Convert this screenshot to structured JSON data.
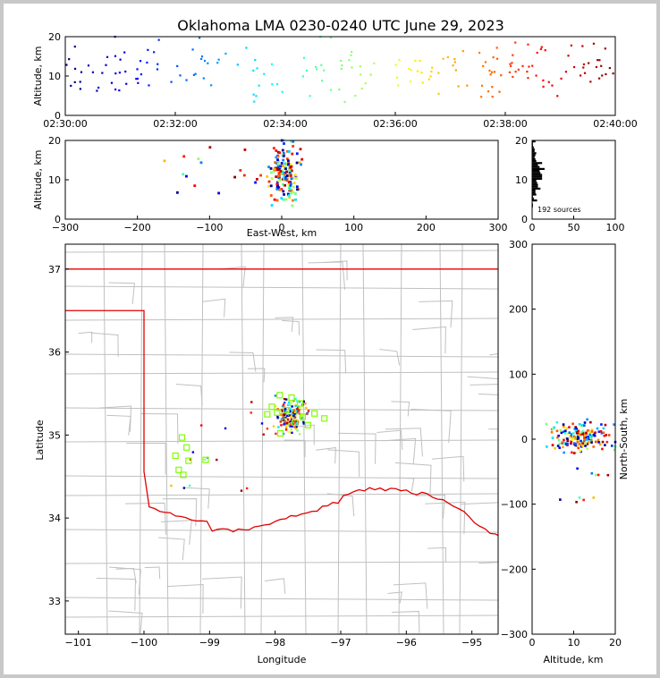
{
  "title": "Oklahoma LMA 0230-0240 UTC June 29, 2023",
  "colors": {
    "state_border": "#e00000",
    "county_lines": "#c0c0c0",
    "station_marker": "#7fff00",
    "colormap": "jet"
  },
  "chart_data": [
    {
      "id": "time-altitude",
      "type": "scatter",
      "ylabel": "Altitude, km",
      "ylim": [
        0,
        20
      ],
      "yticks": [
        "0",
        "10",
        "20"
      ],
      "xlim_seconds": [
        0,
        600
      ],
      "xtick_labels": [
        "02:30:00",
        "02:32:00",
        "02:34:00",
        "02:36:00",
        "02:38:00",
        "02:40:00"
      ],
      "points_note": "scattered sources, color = time (jet colormap)"
    },
    {
      "id": "eastwest-altitude",
      "type": "scatter",
      "xlabel": "East-West, km",
      "ylabel": "Altitude, km",
      "xlim": [
        -300,
        300
      ],
      "ylim": [
        0,
        20
      ],
      "xticks": [
        "−300",
        "−200",
        "−100",
        "0",
        "100",
        "200",
        "300"
      ],
      "yticks": [
        "0",
        "10",
        "20"
      ]
    },
    {
      "id": "altitude-histogram",
      "type": "bar",
      "annotation": "192 sources",
      "xlim": [
        0,
        100
      ],
      "ylim": [
        0,
        20
      ],
      "xticks": [
        "0",
        "50",
        "100"
      ],
      "yticks": [
        "0",
        "10",
        "20"
      ]
    },
    {
      "id": "plan-view",
      "type": "scatter",
      "xlabel": "Longitude",
      "ylabel": "Latitude",
      "xlim": [
        -101.2,
        -94.6
      ],
      "ylim": [
        32.6,
        37.3
      ],
      "xticks": [
        "−101",
        "−100",
        "−99",
        "−98",
        "−97",
        "−96",
        "−95"
      ],
      "yticks": [
        "33",
        "34",
        "35",
        "36",
        "37"
      ],
      "stations": [
        [
          -97.93,
          35.48
        ],
        [
          -97.75,
          35.45
        ],
        [
          -97.62,
          35.38
        ],
        [
          -97.83,
          35.3
        ],
        [
          -97.97,
          35.27
        ],
        [
          -98.12,
          35.25
        ],
        [
          -97.58,
          35.22
        ],
        [
          -97.4,
          35.26
        ],
        [
          -97.5,
          35.12
        ],
        [
          -97.7,
          35.15
        ],
        [
          -97.92,
          35.02
        ],
        [
          -98.05,
          35.34
        ],
        [
          -97.25,
          35.2
        ],
        [
          -99.42,
          34.97
        ],
        [
          -99.35,
          34.85
        ],
        [
          -99.52,
          34.75
        ],
        [
          -99.32,
          34.69
        ],
        [
          -99.06,
          34.7
        ],
        [
          -99.47,
          34.58
        ],
        [
          -99.4,
          34.52
        ]
      ]
    },
    {
      "id": "altitude-northsouth",
      "type": "scatter",
      "xlabel": "Altitude, km",
      "ylabel": "North-South, km",
      "xlim": [
        0,
        20
      ],
      "ylim": [
        -300,
        300
      ],
      "xticks": [
        "0",
        "10",
        "20"
      ],
      "yticks": [
        "−300",
        "−200",
        "−100",
        "0",
        "100",
        "200",
        "300"
      ]
    }
  ]
}
